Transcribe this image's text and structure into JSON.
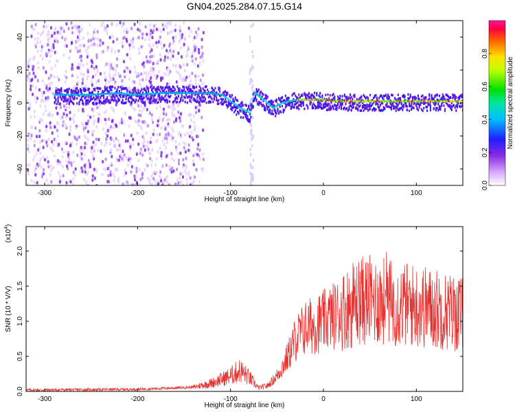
{
  "title": "GN04.2025.284.07.15.G14",
  "chart_data": [
    {
      "type": "heatmap",
      "xlabel": "Height of straight line (km)",
      "ylabel": "Frequency (Hz)",
      "xlim": [
        -320,
        150
      ],
      "ylim": [
        -50,
        50
      ],
      "x_ticks": [
        -300,
        -200,
        -100,
        0,
        100
      ],
      "y_ticks": [
        -40,
        -20,
        0,
        20,
        40
      ],
      "colorbar": {
        "label": "Normalized spectral amplitude",
        "range": [
          0,
          1
        ],
        "ticks": [
          0.0,
          0.2,
          0.4,
          0.6,
          0.8
        ],
        "tick_labels": [
          "0.0",
          "0.2",
          "0.4",
          "0.6",
          "0.8"
        ]
      },
      "ridge": [
        {
          "x": -275,
          "y": 5
        },
        {
          "x": -250,
          "y": 5
        },
        {
          "x": -225,
          "y": 6
        },
        {
          "x": -200,
          "y": 5
        },
        {
          "x": -175,
          "y": 6
        },
        {
          "x": -150,
          "y": 6
        },
        {
          "x": -125,
          "y": 6
        },
        {
          "x": -110,
          "y": 5
        },
        {
          "x": -100,
          "y": 1
        },
        {
          "x": -90,
          "y": -3
        },
        {
          "x": -80,
          "y": -6
        },
        {
          "x": -75,
          "y": 6
        },
        {
          "x": -65,
          "y": 2
        },
        {
          "x": -55,
          "y": -3
        },
        {
          "x": -45,
          "y": 0
        },
        {
          "x": -30,
          "y": 2
        },
        {
          "x": -10,
          "y": 2
        },
        {
          "x": 20,
          "y": 1
        },
        {
          "x": 60,
          "y": 1
        },
        {
          "x": 100,
          "y": 1
        },
        {
          "x": 150,
          "y": 1
        }
      ]
    },
    {
      "type": "line",
      "xlabel": "Height of straight line (km)",
      "ylabel": "SNR (10 * V/V)",
      "yscale_label": "(x10",
      "yscale_exp": "4",
      "xlim": [
        -320,
        150
      ],
      "ylim": [
        0,
        2.35
      ],
      "x_ticks": [
        -300,
        -200,
        -100,
        0,
        100
      ],
      "y_ticks": [
        0.0,
        0.5,
        1.0,
        1.5,
        2.0
      ],
      "y_tick_labels": [
        "0.0",
        "0.5",
        "1.0",
        "1.5",
        "2.0"
      ],
      "color": "#e8312f",
      "envelope": [
        {
          "x": -320,
          "y": 0.02
        },
        {
          "x": -200,
          "y": 0.03
        },
        {
          "x": -140,
          "y": 0.06
        },
        {
          "x": -120,
          "y": 0.12
        },
        {
          "x": -100,
          "y": 0.22
        },
        {
          "x": -90,
          "y": 0.3
        },
        {
          "x": -80,
          "y": 0.2
        },
        {
          "x": -70,
          "y": 0.05
        },
        {
          "x": -60,
          "y": 0.08
        },
        {
          "x": -50,
          "y": 0.22
        },
        {
          "x": -40,
          "y": 0.45
        },
        {
          "x": -30,
          "y": 0.75
        },
        {
          "x": -20,
          "y": 0.9
        },
        {
          "x": 0,
          "y": 1.0
        },
        {
          "x": 20,
          "y": 1.15
        },
        {
          "x": 40,
          "y": 1.3
        },
        {
          "x": 60,
          "y": 1.3
        },
        {
          "x": 80,
          "y": 1.25
        },
        {
          "x": 100,
          "y": 1.22
        },
        {
          "x": 120,
          "y": 1.18
        },
        {
          "x": 150,
          "y": 1.1
        }
      ]
    }
  ]
}
